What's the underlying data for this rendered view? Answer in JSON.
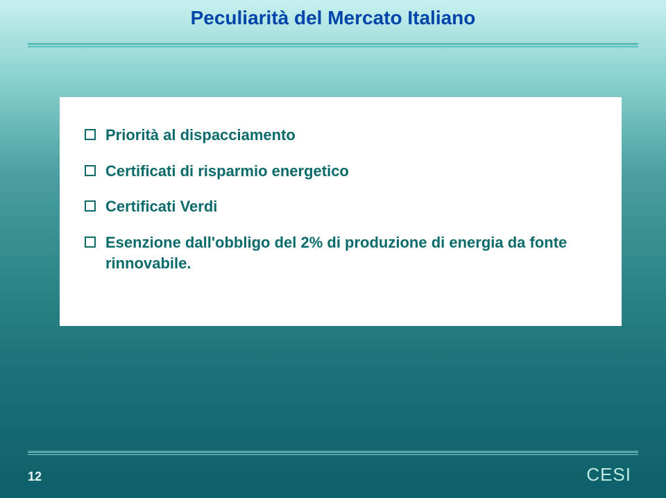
{
  "title": {
    "text": "Peculiarità del Mercato Italiano",
    "color": "#0044aa",
    "fontsize": 28
  },
  "rule_color": "#2aa8a5",
  "content_box": {
    "background": "#ffffff"
  },
  "bullets": {
    "color": "#0b6a6a",
    "icon_border_color": "#0b6a6a",
    "fontsize": 22,
    "items": [
      "Priorità al dispacciamento",
      "Certificati di risparmio energetico",
      "Certificati Verdi",
      "Esenzione dall'obbligo del 2% di produzione di energia da fonte rinnovabile."
    ]
  },
  "footer": {
    "page_number": "12",
    "page_number_color": "#e9f7f6",
    "page_number_fontsize": 18,
    "brand": "CESI",
    "brand_color": "#bfe9e7",
    "brand_fontsize": 26
  }
}
